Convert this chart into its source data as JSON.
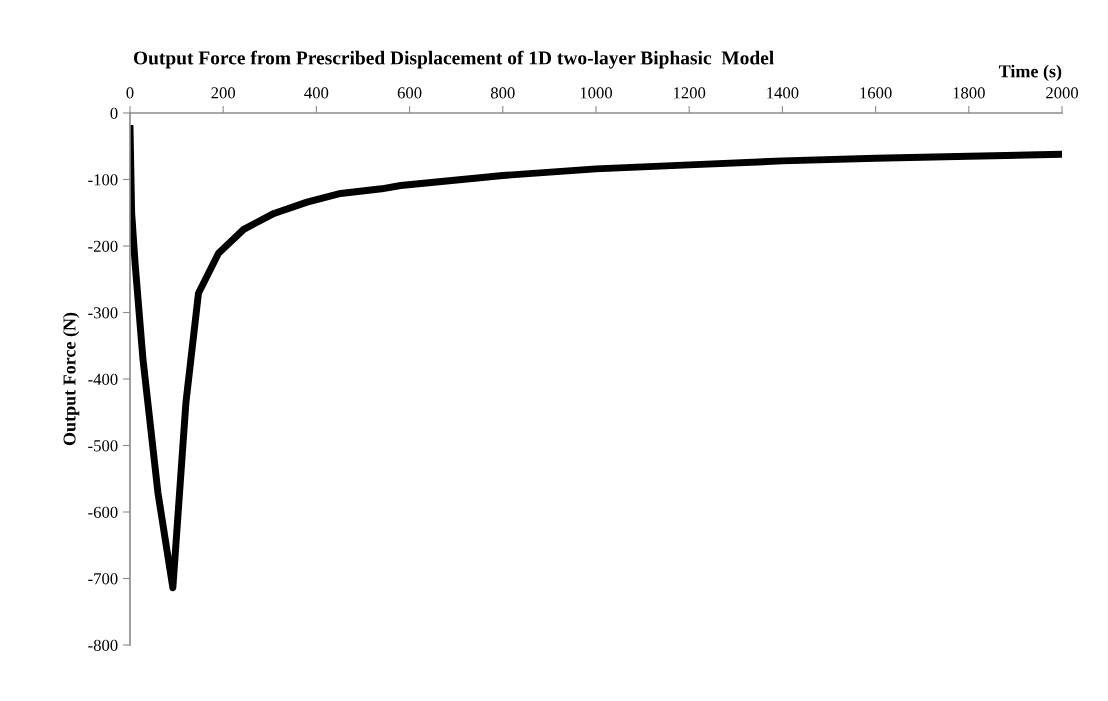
{
  "chart_data": {
    "type": "line",
    "title": "Output Force from Prescribed Displacement of 1D two-layer Biphasic  Model",
    "xlabel": "Time (s)",
    "ylabel": "Output Force (N)",
    "x": [
      0,
      3.6,
      11,
      25,
      28,
      60,
      92,
      120,
      147,
      190,
      244,
      309,
      380,
      452,
      540,
      581,
      800,
      1000,
      1200,
      1400,
      1600,
      1800,
      2000
    ],
    "series": [
      {
        "color": "#000000",
        "values": [
          -18,
          -150,
          -226,
          -346,
          -371,
          -571,
          -714,
          -436,
          -271,
          -211,
          -175,
          -151,
          -134,
          -121,
          -114,
          -109,
          -94,
          -84,
          -78,
          -72,
          -68,
          -65,
          -62
        ]
      }
    ],
    "xlim": [
      0,
      2000
    ],
    "xticks": [
      0,
      200,
      400,
      600,
      800,
      1000,
      1200,
      1400,
      1600,
      1800,
      2000
    ],
    "ylim": [
      -800,
      0
    ],
    "yticks": [
      -800,
      -700,
      -600,
      -500,
      -400,
      -300,
      -200,
      -100,
      0
    ],
    "grid": false,
    "legend": false,
    "marker": "none",
    "line_style": "solid"
  }
}
